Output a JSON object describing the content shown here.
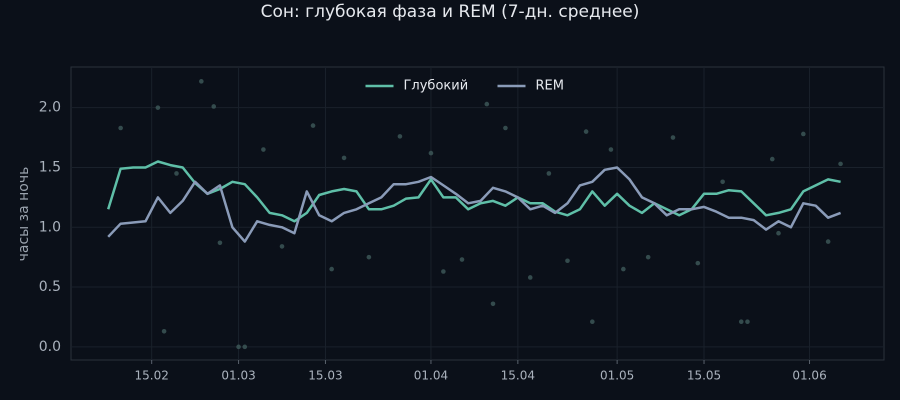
{
  "chart_data": {
    "type": "line",
    "title": "Сон: глубокая фаза и REM (7-дн. среднее)",
    "y_label": "часы за ночь",
    "x": [
      "08.02",
      "10.02",
      "12.02",
      "14.02",
      "16.02",
      "18.02",
      "20.02",
      "22.02",
      "24.02",
      "26.02",
      "28.02",
      "02.03",
      "04.03",
      "06.03",
      "08.03",
      "10.03",
      "12.03",
      "14.03",
      "16.03",
      "18.03",
      "20.03",
      "22.03",
      "24.03",
      "26.03",
      "28.03",
      "30.03",
      "01.04",
      "03.04",
      "05.04",
      "07.04",
      "09.04",
      "11.04",
      "13.04",
      "15.04",
      "17.04",
      "19.04",
      "21.04",
      "23.04",
      "25.04",
      "27.04",
      "29.04",
      "01.05",
      "03.05",
      "05.05",
      "07.05",
      "09.05",
      "11.05",
      "13.05",
      "15.05",
      "17.05",
      "19.05",
      "21.05",
      "23.05",
      "25.05",
      "27.05",
      "29.05",
      "31.05",
      "02.06",
      "04.06",
      "06.06"
    ],
    "series": [
      {
        "name": "Глубокий",
        "color": "#5fbfa8",
        "values": [
          1.15,
          1.49,
          1.5,
          1.5,
          1.55,
          1.52,
          1.5,
          1.37,
          1.28,
          1.32,
          1.38,
          1.36,
          1.25,
          1.12,
          1.1,
          1.05,
          1.12,
          1.27,
          1.3,
          1.32,
          1.3,
          1.15,
          1.15,
          1.18,
          1.24,
          1.25,
          1.4,
          1.25,
          1.25,
          1.15,
          1.2,
          1.22,
          1.18,
          1.25,
          1.2,
          1.2,
          1.13,
          1.1,
          1.15,
          1.3,
          1.18,
          1.28,
          1.18,
          1.12,
          1.2,
          1.15,
          1.1,
          1.15,
          1.28,
          1.28,
          1.31,
          1.3,
          1.2,
          1.1,
          1.12,
          1.15,
          1.3,
          1.35,
          1.4,
          1.38
        ]
      },
      {
        "name": "REM",
        "color": "#8a9bb8",
        "values": [
          0.92,
          1.03,
          1.04,
          1.05,
          1.25,
          1.12,
          1.22,
          1.38,
          1.28,
          1.35,
          1.0,
          0.88,
          1.05,
          1.02,
          1.0,
          0.95,
          1.3,
          1.1,
          1.05,
          1.12,
          1.15,
          1.2,
          1.25,
          1.36,
          1.36,
          1.38,
          1.42,
          1.35,
          1.28,
          1.2,
          1.22,
          1.33,
          1.3,
          1.25,
          1.15,
          1.18,
          1.12,
          1.2,
          1.35,
          1.38,
          1.48,
          1.5,
          1.4,
          1.25,
          1.2,
          1.1,
          1.15,
          1.15,
          1.17,
          1.13,
          1.08,
          1.08,
          1.06,
          0.98,
          1.05,
          1.0,
          1.2,
          1.18,
          1.08,
          1.12
        ]
      }
    ],
    "nightly": {
      "color": "#3f5a5a",
      "x": [
        "10.02",
        "16.02",
        "17.02",
        "19.02",
        "23.02",
        "25.02",
        "26.02",
        "01.03",
        "02.03",
        "05.03",
        "08.03",
        "13.03",
        "16.03",
        "18.03",
        "22.03",
        "27.03",
        "01.04",
        "03.04",
        "06.04",
        "10.04",
        "11.04",
        "13.04",
        "17.04",
        "20.04",
        "23.04",
        "26.04",
        "27.04",
        "30.04",
        "02.05",
        "06.05",
        "10.05",
        "14.05",
        "18.05",
        "21.05",
        "22.05",
        "26.05",
        "27.05",
        "31.05",
        "04.06",
        "06.06"
      ],
      "values": [
        1.83,
        2.0,
        0.13,
        1.45,
        2.22,
        2.01,
        0.87,
        0.0,
        0.0,
        1.65,
        0.84,
        1.85,
        0.65,
        1.58,
        0.75,
        1.76,
        1.62,
        0.63,
        0.73,
        2.03,
        0.36,
        1.83,
        0.58,
        1.45,
        0.72,
        1.8,
        0.21,
        1.65,
        0.65,
        0.75,
        1.75,
        0.7,
        1.38,
        0.21,
        0.21,
        1.57,
        0.95,
        1.78,
        0.88,
        1.53
      ]
    },
    "xlim": [
      "02.02",
      "13.06"
    ],
    "xticks": [
      "15.02",
      "01.03",
      "15.03",
      "01.04",
      "15.04",
      "01.05",
      "15.05",
      "01.06"
    ],
    "ylim": [
      -0.11,
      2.34
    ],
    "yticks": [
      {
        "value": 0,
        "label": "0.0"
      },
      0.5,
      {
        "value": 1,
        "label": "1.0"
      },
      1.5,
      {
        "value": 2,
        "label": "2.0"
      }
    ],
    "grid": true,
    "legend": "upper center"
  }
}
